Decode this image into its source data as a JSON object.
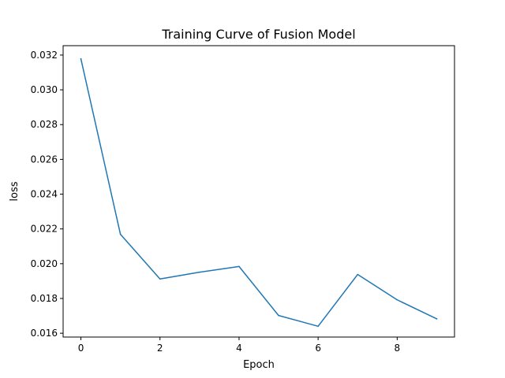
{
  "chart_data": {
    "type": "line",
    "title": "Training Curve of Fusion Model",
    "xlabel": "Epoch",
    "ylabel": "loss",
    "xlim": [
      -0.45,
      9.45
    ],
    "ylim": [
      0.01578,
      0.03254
    ],
    "xticks": [
      0,
      2,
      4,
      6,
      8
    ],
    "xtick_labels": [
      "0",
      "2",
      "4",
      "6",
      "8"
    ],
    "yticks": [
      0.016,
      0.018,
      0.02,
      0.022,
      0.024,
      0.026,
      0.028,
      0.03,
      0.032
    ],
    "ytick_labels": [
      "0.016",
      "0.018",
      "0.020",
      "0.022",
      "0.024",
      "0.026",
      "0.028",
      "0.030",
      "0.032"
    ],
    "grid": false,
    "series": [
      {
        "color": "#1f77b4",
        "x": [
          0,
          1,
          2,
          3,
          4,
          5,
          6,
          7,
          8,
          9
        ],
        "y": [
          0.03178,
          0.02169,
          0.01912,
          0.01951,
          0.01984,
          0.01702,
          0.0164,
          0.01938,
          0.01792,
          0.01683
        ]
      }
    ]
  }
}
